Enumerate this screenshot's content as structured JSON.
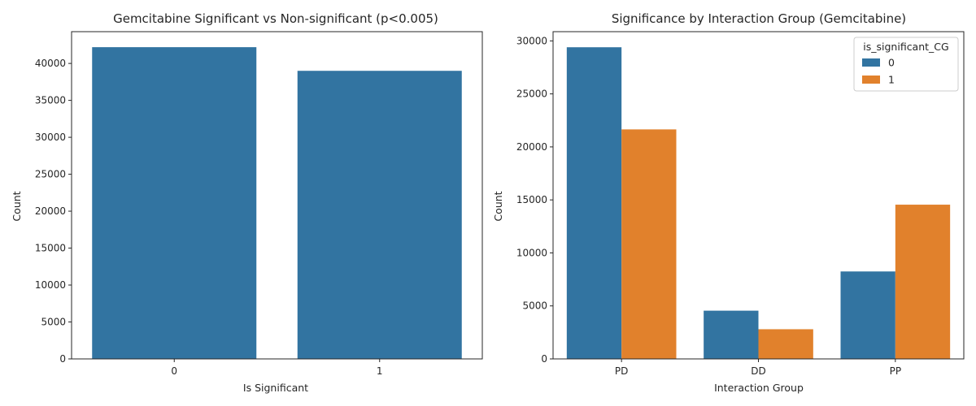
{
  "colors": {
    "blue": "#3274a1",
    "orange": "#e1812c"
  },
  "chart_data": [
    {
      "type": "bar",
      "title": "Gemcitabine Significant vs Non-significant (p<0.005)",
      "xlabel": "Is Significant",
      "ylabel": "Count",
      "categories": [
        "0",
        "1"
      ],
      "values": [
        42200,
        39000
      ],
      "ylim": [
        0,
        44300
      ],
      "yticks": [
        0,
        5000,
        10000,
        15000,
        20000,
        25000,
        30000,
        35000,
        40000
      ],
      "grid": false
    },
    {
      "type": "bar",
      "title": "Significance by Interaction Group (Gemcitabine)",
      "xlabel": "Interaction Group",
      "ylabel": "Count",
      "categories": [
        "PD",
        "DD",
        "PP"
      ],
      "series": [
        {
          "name": "0",
          "values": [
            29400,
            4550,
            8250
          ]
        },
        {
          "name": "1",
          "values": [
            21650,
            2800,
            14550
          ]
        }
      ],
      "legend_title": "is_significant_CG",
      "legend_position": "top-right",
      "ylim": [
        0,
        30870
      ],
      "yticks": [
        0,
        5000,
        10000,
        15000,
        20000,
        25000,
        30000
      ],
      "grid": false
    }
  ]
}
